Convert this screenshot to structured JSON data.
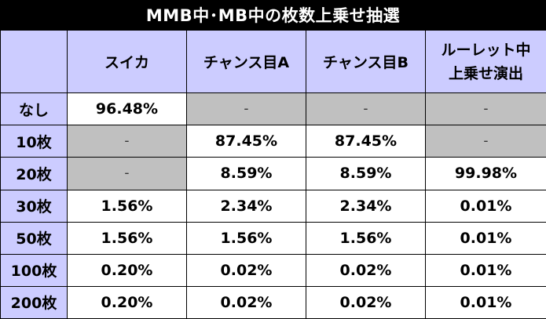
{
  "title": "MMB中･MB中の枚数上乗せ抽選",
  "table": {
    "columns": [
      "スイカ",
      "チャンス目A",
      "チャンス目B"
    ],
    "last_column": [
      "ルーレット中",
      "上乗せ演出"
    ],
    "rows": [
      {
        "label": "なし",
        "cells": [
          "96.48%",
          "-",
          "-",
          "-"
        ]
      },
      {
        "label": "10枚",
        "cells": [
          "-",
          "87.45%",
          "87.45%",
          "-"
        ]
      },
      {
        "label": "20枚",
        "cells": [
          "-",
          "8.59%",
          "8.59%",
          "99.98%"
        ]
      },
      {
        "label": "30枚",
        "cells": [
          "1.56%",
          "2.34%",
          "2.34%",
          "0.01%"
        ]
      },
      {
        "label": "50枚",
        "cells": [
          "1.56%",
          "1.56%",
          "1.56%",
          "0.01%"
        ]
      },
      {
        "label": "100枚",
        "cells": [
          "0.20%",
          "0.02%",
          "0.02%",
          "0.01%"
        ]
      },
      {
        "label": "200枚",
        "cells": [
          "0.20%",
          "0.02%",
          "0.02%",
          "0.01%"
        ]
      }
    ]
  },
  "colors": {
    "header_bg": "#ccccff",
    "na_bg": "#c0c0c0",
    "title_bg": "#000000"
  }
}
